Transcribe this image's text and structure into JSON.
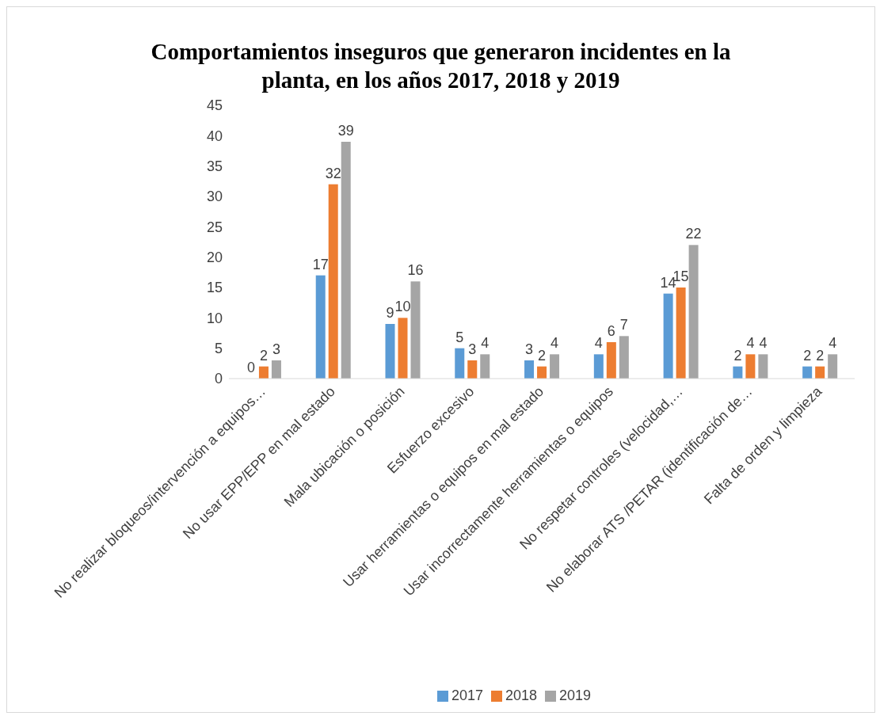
{
  "chart_data": {
    "type": "bar",
    "title": "Comportamientos inseguros que generaron incidentes en la planta, en los años 2017, 2018 y 2019",
    "categories": [
      "No realizar bloqueos/intervención a equipos…",
      "No usar EPP/EPP en mal estado",
      "Mala ubicación o posición",
      "Esfuerzo excesivo",
      "Usar herramientas o equipos en mal estado",
      "Usar incorrectamente herramientas o equipos",
      "No respetar controles (velocidad,…",
      "No elaborar ATS /PETAR (identificación de…",
      "Falta de orden y limpieza"
    ],
    "series": [
      {
        "name": "2017",
        "color": "#5b9bd5",
        "values": [
          0,
          17,
          9,
          5,
          3,
          4,
          14,
          2,
          2
        ]
      },
      {
        "name": "2018",
        "color": "#ed7d31",
        "values": [
          2,
          32,
          10,
          3,
          2,
          6,
          15,
          4,
          2
        ]
      },
      {
        "name": "2019",
        "color": "#a5a5a5",
        "values": [
          3,
          39,
          16,
          4,
          4,
          7,
          22,
          4,
          4
        ]
      }
    ],
    "ylim": [
      0,
      45
    ],
    "yticks": [
      0,
      5,
      10,
      15,
      20,
      25,
      30,
      35,
      40,
      45
    ],
    "data_labels": true,
    "legend": "bottom"
  }
}
